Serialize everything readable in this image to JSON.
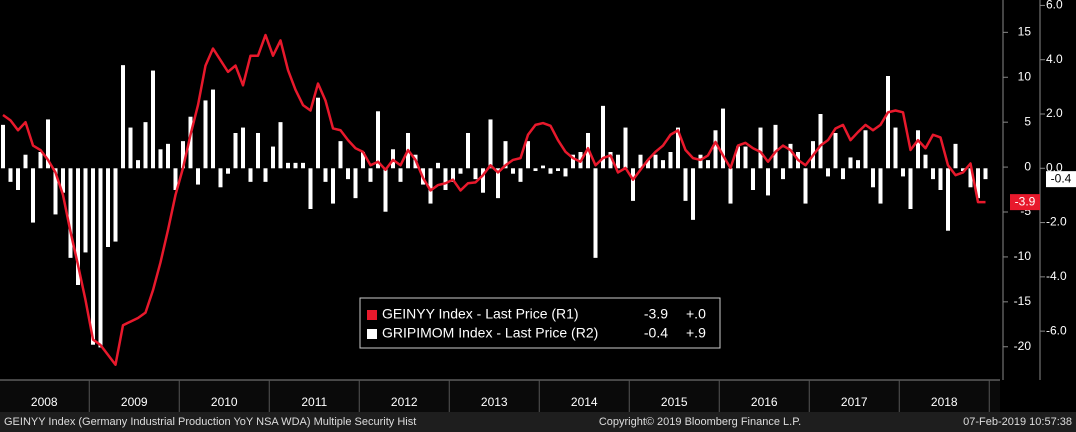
{
  "chart_data": {
    "type": "combo",
    "categories": [
      null,
      null,
      null,
      null,
      null,
      null,
      "2008",
      null,
      null,
      null,
      null,
      null,
      null,
      null,
      null,
      null,
      null,
      null,
      "2009",
      null,
      null,
      null,
      null,
      null,
      null,
      null,
      null,
      null,
      null,
      null,
      "2010",
      null,
      null,
      null,
      null,
      null,
      null,
      null,
      null,
      null,
      null,
      null,
      "2011",
      null,
      null,
      null,
      null,
      null,
      null,
      null,
      null,
      null,
      null,
      null,
      "2012",
      null,
      null,
      null,
      null,
      null,
      null,
      null,
      null,
      null,
      null,
      null,
      "2013",
      null,
      null,
      null,
      null,
      null,
      null,
      null,
      null,
      null,
      null,
      null,
      "2014",
      null,
      null,
      null,
      null,
      null,
      null,
      null,
      null,
      null,
      null,
      null,
      "2015",
      null,
      null,
      null,
      null,
      null,
      null,
      null,
      null,
      null,
      null,
      null,
      "2016",
      null,
      null,
      null,
      null,
      null,
      null,
      null,
      null,
      null,
      null,
      null,
      "2017",
      null,
      null,
      null,
      null,
      null,
      null,
      null,
      null,
      null,
      null,
      null,
      "2018",
      null,
      null,
      null,
      null,
      null
    ],
    "series": [
      {
        "name": "GEINYY Index - Last Price (R1)",
        "type": "line",
        "axis": "y",
        "color": "#e8192c",
        "change": "+.0",
        "values": [
          5.8,
          5.2,
          4.1,
          5.0,
          2.4,
          1.9,
          0.8,
          -0.6,
          -3.1,
          -7.2,
          -10.9,
          -14.8,
          -19.2,
          -19.8,
          -20.9,
          -22.0,
          -17.6,
          -17.2,
          -16.8,
          -16.2,
          -13.7,
          -10.6,
          -7.0,
          -3.1,
          -0.1,
          3.6,
          6.9,
          11.3,
          13.2,
          11.9,
          10.6,
          11.3,
          9.1,
          12.4,
          12.4,
          14.7,
          12.4,
          14.1,
          10.8,
          8.6,
          6.9,
          6.3,
          9.3,
          7.4,
          4.3,
          4.1,
          3.0,
          2.1,
          1.7,
          0.2,
          0.6,
          -0.3,
          0.8,
          0.2,
          1.9,
          0.8,
          -1.2,
          -2.6,
          -2.0,
          -1.8,
          -1.4,
          -2.6,
          -1.8,
          -1.7,
          -0.9,
          0.2,
          -0.6,
          0.2,
          0.8,
          1.0,
          3.6,
          4.7,
          4.9,
          4.6,
          3.0,
          1.7,
          1.0,
          0.6,
          2.1,
          0.2,
          1.0,
          1.3,
          -0.6,
          -0.1,
          -1.4,
          -0.3,
          0.8,
          1.7,
          2.4,
          3.6,
          4.1,
          1.9,
          1.0,
          0.8,
          1.3,
          2.8,
          1.3,
          -0.1,
          2.4,
          2.7,
          2.1,
          1.7,
          0.6,
          1.7,
          2.4,
          1.9,
          0.8,
          0.2,
          1.3,
          2.4,
          3.0,
          4.3,
          4.7,
          3.0,
          3.9,
          4.7,
          4.1,
          4.7,
          6.1,
          6.3,
          6.1,
          1.9,
          3.0,
          2.1,
          3.6,
          3.3,
          0.2,
          -0.9,
          -0.6,
          0.4,
          -3.9,
          -3.9
        ]
      },
      {
        "name": "GRIPIMOM Index - Last Price (R2)",
        "type": "bar",
        "axis": "y2",
        "color": "#ffffff",
        "change": "+.9",
        "values": [
          1.6,
          -0.5,
          -0.8,
          0.5,
          -2.0,
          0.6,
          1.8,
          -1.7,
          -0.9,
          -3.3,
          -4.3,
          -3.1,
          -6.5,
          -6.6,
          -2.9,
          -2.7,
          3.8,
          1.5,
          0.3,
          1.7,
          3.6,
          0.7,
          0.9,
          -0.8,
          1.0,
          1.9,
          -0.6,
          2.5,
          2.9,
          -0.7,
          -0.2,
          1.3,
          1.5,
          -0.5,
          1.3,
          -0.5,
          0.8,
          1.7,
          0.2,
          0.2,
          0.2,
          -1.5,
          2.6,
          -0.5,
          -1.3,
          1.0,
          -0.4,
          -1.1,
          0.6,
          -0.5,
          2.1,
          -1.6,
          0.7,
          -0.5,
          1.3,
          0.5,
          -0.6,
          -1.3,
          0.2,
          -0.8,
          -0.5,
          -0.2,
          1.3,
          -0.4,
          -0.9,
          1.8,
          -1.1,
          1.0,
          -0.2,
          -0.5,
          1.0,
          -0.1,
          0.1,
          -0.2,
          -0.1,
          -0.3,
          0.5,
          0.6,
          1.3,
          -3.3,
          2.3,
          0.6,
          0.5,
          1.5,
          -1.2,
          0.5,
          0.3,
          0.5,
          0.3,
          0.6,
          1.5,
          -1.2,
          -1.9,
          0.5,
          0.3,
          1.4,
          2.2,
          -1.3,
          0.8,
          0.8,
          -0.8,
          1.5,
          -1.0,
          1.6,
          -0.4,
          0.9,
          0.6,
          -1.3,
          1.0,
          2.0,
          -0.3,
          1.3,
          -0.4,
          0.4,
          0.3,
          1.4,
          -0.7,
          -1.3,
          3.4,
          1.5,
          -0.3,
          -1.5,
          1.4,
          0.5,
          -0.4,
          -0.8,
          -2.3,
          0.9,
          -0.1,
          -0.7,
          -1.1,
          -0.4
        ]
      }
    ],
    "ylim": [
      -23.7,
      18.6
    ],
    "yticks": [
      15,
      10,
      5,
      0,
      -5,
      -10,
      -15,
      -20
    ],
    "y2lim": [
      -7.8,
      6.2
    ],
    "y2ticks": [
      {
        "value": 6,
        "label": "6.0"
      },
      {
        "value": 4,
        "label": "4.0"
      },
      {
        "value": 2,
        "label": "2.0"
      },
      {
        "value": 0,
        "label": "0.0"
      },
      {
        "value": -2,
        "label": "-2.0"
      },
      {
        "value": -4,
        "label": "-4.0"
      },
      {
        "value": -6,
        "label": "-6.0"
      }
    ]
  },
  "footer": {
    "left": "GEINYY Index (Germany Industrial Production YoY NSA WDA) Multiple Security Hist",
    "center": "Copyright© 2019 Bloomberg Finance L.P.",
    "right": "07-Feb-2019 10:57:38"
  }
}
